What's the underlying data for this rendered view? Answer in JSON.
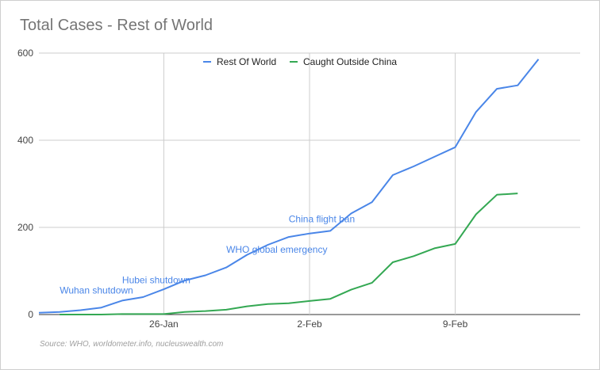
{
  "chart_data": {
    "type": "line",
    "title": "Total Cases - Rest of World",
    "source": "Source: WHO, worldometer.info, nucleuswealth.com",
    "xlabel": "",
    "ylabel": "",
    "ylim": [
      0,
      600
    ],
    "yticks": [
      0,
      200,
      400,
      600
    ],
    "x_range": [
      "2020-01-20",
      "2020-02-15"
    ],
    "xticks": [
      {
        "date": "2020-01-26",
        "label": "26-Jan"
      },
      {
        "date": "2020-02-02",
        "label": "2-Feb"
      },
      {
        "date": "2020-02-09",
        "label": "9-Feb"
      }
    ],
    "grid": true,
    "legend_position": "top-center",
    "series": [
      {
        "name": "Rest Of World",
        "color": "#4a86e8",
        "x": [
          "2020-01-20",
          "2020-01-21",
          "2020-01-22",
          "2020-01-23",
          "2020-01-24",
          "2020-01-25",
          "2020-01-26",
          "2020-01-27",
          "2020-01-28",
          "2020-01-29",
          "2020-01-30",
          "2020-01-31",
          "2020-02-01",
          "2020-02-02",
          "2020-02-03",
          "2020-02-04",
          "2020-02-05",
          "2020-02-06",
          "2020-02-07",
          "2020-02-08",
          "2020-02-09",
          "2020-02-10",
          "2020-02-11",
          "2020-02-12",
          "2020-02-13",
          "2020-02-14",
          "2020-02-15"
        ],
        "values": [
          4,
          6,
          10,
          16,
          32,
          40,
          58,
          78,
          90,
          108,
          137,
          160,
          178,
          186,
          192,
          232,
          258,
          320,
          340,
          362,
          384,
          465,
          518,
          526,
          586,
          null,
          null
        ]
      },
      {
        "name": "Caught Outside China",
        "color": "#34a853",
        "x": [
          "2020-01-21",
          "2020-01-22",
          "2020-01-23",
          "2020-01-24",
          "2020-01-25",
          "2020-01-26",
          "2020-01-27",
          "2020-01-28",
          "2020-01-29",
          "2020-01-30",
          "2020-01-31",
          "2020-02-01",
          "2020-02-02",
          "2020-02-03",
          "2020-02-04",
          "2020-02-05",
          "2020-02-06",
          "2020-02-07",
          "2020-02-08",
          "2020-02-09",
          "2020-02-10",
          "2020-02-11",
          "2020-02-12",
          "2020-02-13"
        ],
        "values": [
          0,
          0,
          0,
          1,
          1,
          1,
          6,
          8,
          11,
          19,
          24,
          26,
          31,
          36,
          57,
          73,
          120,
          134,
          152,
          162,
          230,
          275,
          278,
          null
        ]
      }
    ],
    "annotations": [
      {
        "text": "Wuhan shutdown",
        "date": "2020-01-21",
        "value": 48
      },
      {
        "text": "Hubei shutdown",
        "date": "2020-01-24",
        "value": 72
      },
      {
        "text": "WHO global emergency",
        "date": "2020-01-29",
        "value": 142
      },
      {
        "text": "China flight ban",
        "date": "2020-02-01",
        "value": 212
      }
    ]
  }
}
